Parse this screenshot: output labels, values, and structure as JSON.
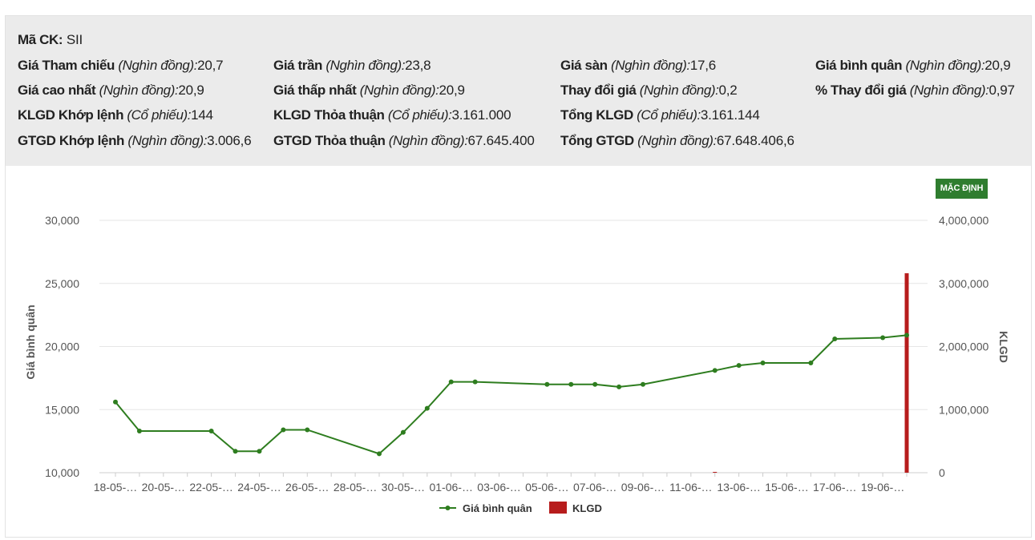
{
  "info": {
    "ticker_label": "Mã CK:",
    "ticker_value": "SII",
    "rows": [
      [
        {
          "label": "Giá Tham chiếu",
          "unit": "(Nghìn đồng):",
          "value": "20,7"
        },
        {
          "label": "Giá trần",
          "unit": "(Nghìn đồng):",
          "value": "23,8"
        },
        {
          "label": "Giá sàn",
          "unit": "(Nghìn đồng):",
          "value": "17,6"
        },
        {
          "label": "Giá bình quân",
          "unit": "(Nghìn đồng):",
          "value": "20,9"
        }
      ],
      [
        {
          "label": "Giá cao nhất",
          "unit": "(Nghìn đồng):",
          "value": "20,9"
        },
        {
          "label": "Giá thấp nhất",
          "unit": "(Nghìn đồng):",
          "value": "20,9"
        },
        {
          "label": "Thay đổi giá",
          "unit": "(Nghìn đồng):",
          "value": "0,2"
        },
        {
          "label": "% Thay đổi giá",
          "unit": "(Nghìn đồng):",
          "value": "0,97"
        }
      ],
      [
        {
          "label": "KLGD Khớp lệnh",
          "unit": "(Cổ phiếu):",
          "value": "144"
        },
        {
          "label": "KLGD Thỏa thuận",
          "unit": "(Cổ phiếu):",
          "value": "3.161.000"
        },
        {
          "label": "Tổng KLGD",
          "unit": "(Cổ phiếu):",
          "value": "3.161.144"
        }
      ],
      [
        {
          "label": "GTGD Khớp lệnh",
          "unit": "(Nghìn đồng):",
          "value": "3.006,6"
        },
        {
          "label": "GTGD Thỏa thuận",
          "unit": "(Nghìn đồng):",
          "value": "67.645.400"
        },
        {
          "label": "Tổng GTGD",
          "unit": "(Nghìn đồng):",
          "value": "67.648.406,6"
        }
      ]
    ]
  },
  "controls": {
    "default_label": "MẶC ĐỊNH"
  },
  "colors": {
    "line": "#2e7d1f",
    "bar": "#b71c1c",
    "button": "#2f7d2f",
    "grid": "#e6e6e6"
  },
  "chart_data": {
    "type": "line",
    "title": "",
    "ylabel": "Giá bình quân",
    "y2label": "KLGD",
    "ylim": [
      10000,
      30000
    ],
    "y2lim": [
      0,
      4000000
    ],
    "y_ticks": [
      "10,000",
      "15,000",
      "20,000",
      "25,000",
      "30,000"
    ],
    "y2_ticks": [
      "0",
      "1,000,000",
      "2,000,000",
      "3,000,000",
      "4,000,000"
    ],
    "x_ticks": [
      "18-05-…",
      "20-05-…",
      "22-05-…",
      "24-05-…",
      "26-05-…",
      "28-05-…",
      "30-05-…",
      "01-06-…",
      "03-06-…",
      "05-06-…",
      "07-06-…",
      "09-06-…",
      "11-06-…",
      "13-06-…",
      "15-06-…",
      "17-06-…",
      "19-06-…"
    ],
    "x_range": [
      0,
      33
    ],
    "legend_position": "bottom-center",
    "series": [
      {
        "name": "Giá bình quân",
        "type": "line",
        "x": [
          0,
          1,
          4,
          5,
          6,
          7,
          8,
          11,
          12,
          13,
          14,
          15,
          18,
          19,
          20,
          21,
          22,
          25,
          26,
          27,
          29,
          30,
          32,
          33
        ],
        "values": [
          15600,
          13300,
          13300,
          11700,
          11700,
          13400,
          13400,
          11500,
          13200,
          15100,
          17200,
          17200,
          17000,
          17000,
          17000,
          16800,
          17000,
          18100,
          18500,
          18700,
          18700,
          20600,
          20700,
          20900
        ]
      },
      {
        "name": "KLGD",
        "type": "bar",
        "axis": "right",
        "x": [
          25,
          33
        ],
        "values": [
          4000,
          3161144
        ]
      }
    ]
  }
}
